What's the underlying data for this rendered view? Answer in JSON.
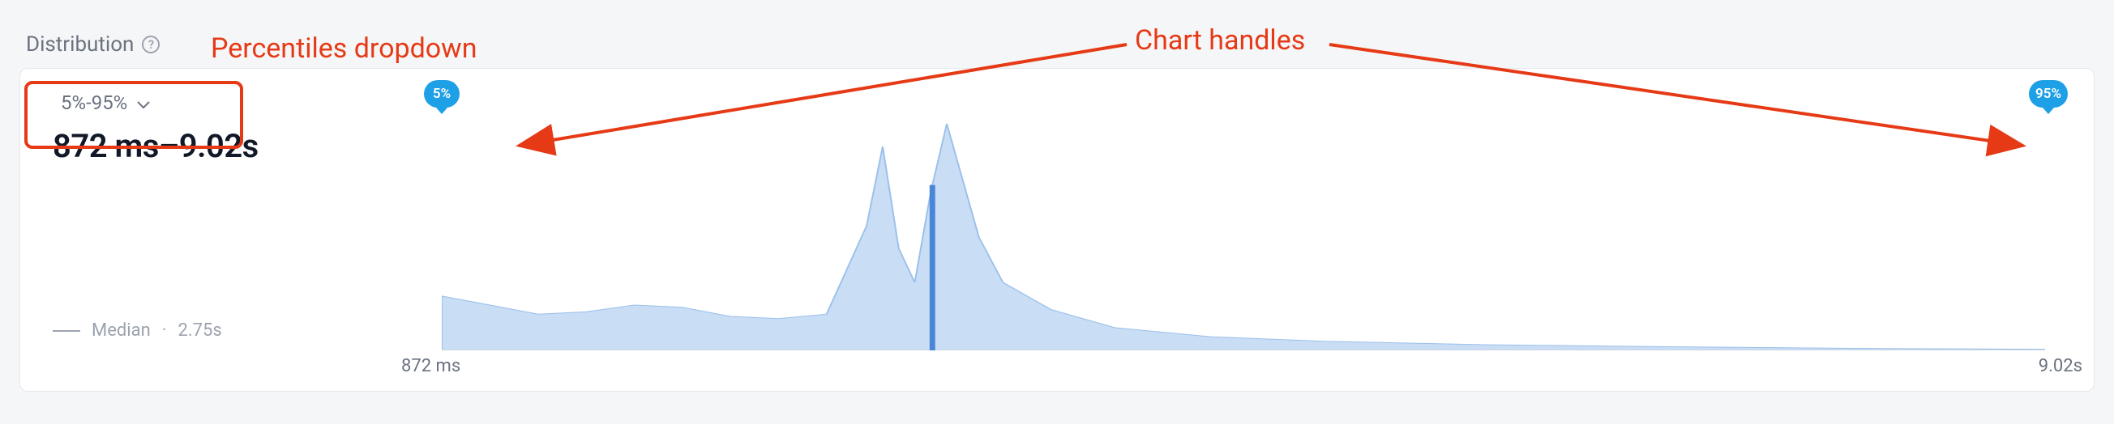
{
  "header": {
    "title": "Distribution"
  },
  "dropdown": {
    "label": "5%-95%"
  },
  "range": {
    "headline": "872 ms–9.02s"
  },
  "median": {
    "label": "Median",
    "value": "2.75s"
  },
  "chart": {
    "type": "area",
    "xaxis_left_label": "872 ms",
    "xaxis_right_label": "9.02s",
    "handle_left_label": "5%",
    "handle_right_label": "95%",
    "area_fill": "#c9ddf5",
    "area_stroke": "#9bc0ea",
    "median_line_color": "#4a86d8",
    "background_color": "#ffffff",
    "series": [
      {
        "x": 0.0,
        "y": 0.24
      },
      {
        "x": 0.03,
        "y": 0.2
      },
      {
        "x": 0.06,
        "y": 0.16
      },
      {
        "x": 0.09,
        "y": 0.17
      },
      {
        "x": 0.12,
        "y": 0.2
      },
      {
        "x": 0.15,
        "y": 0.19
      },
      {
        "x": 0.18,
        "y": 0.15
      },
      {
        "x": 0.21,
        "y": 0.14
      },
      {
        "x": 0.24,
        "y": 0.16
      },
      {
        "x": 0.265,
        "y": 0.55
      },
      {
        "x": 0.275,
        "y": 0.9
      },
      {
        "x": 0.285,
        "y": 0.45
      },
      {
        "x": 0.295,
        "y": 0.3
      },
      {
        "x": 0.305,
        "y": 0.7
      },
      {
        "x": 0.315,
        "y": 1.0
      },
      {
        "x": 0.325,
        "y": 0.75
      },
      {
        "x": 0.335,
        "y": 0.5
      },
      {
        "x": 0.35,
        "y": 0.3
      },
      {
        "x": 0.38,
        "y": 0.18
      },
      {
        "x": 0.42,
        "y": 0.1
      },
      {
        "x": 0.48,
        "y": 0.06
      },
      {
        "x": 0.55,
        "y": 0.04
      },
      {
        "x": 0.65,
        "y": 0.025
      },
      {
        "x": 0.78,
        "y": 0.015
      },
      {
        "x": 0.9,
        "y": 0.008
      },
      {
        "x": 1.0,
        "y": 0.005
      }
    ],
    "median_x": 0.306
  },
  "annotations": {
    "dropdown_callout": "Percentiles dropdown",
    "handles_callout": "Chart handles",
    "callout_color": "#e63a17"
  }
}
